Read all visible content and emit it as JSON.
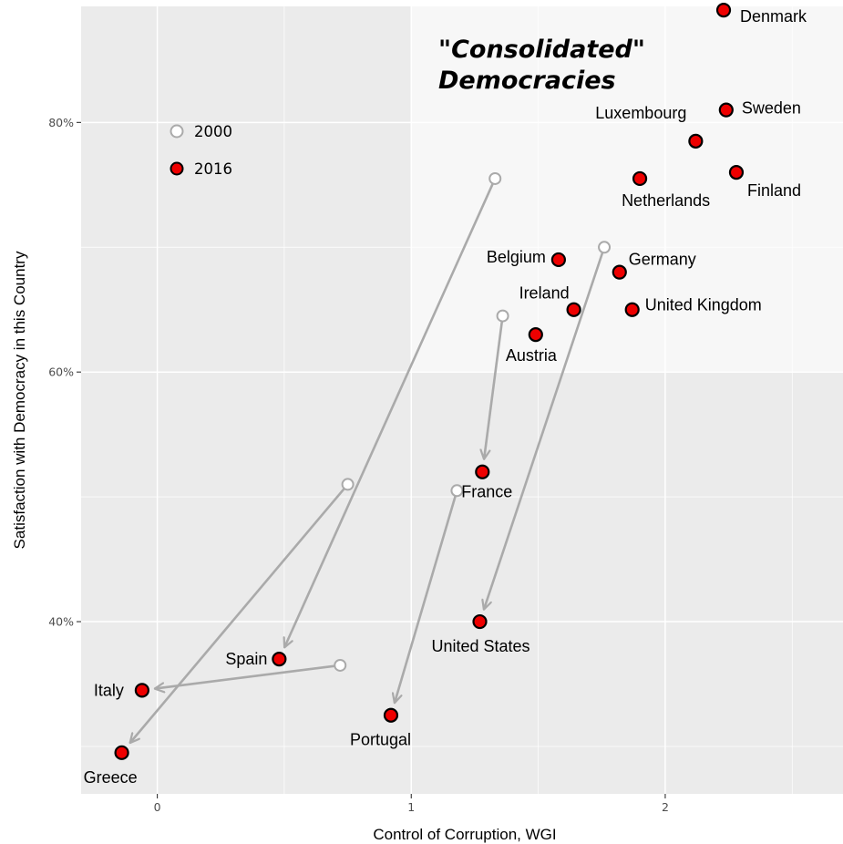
{
  "chart_data": {
    "type": "scatter",
    "xlabel": "Control of Corruption, WGI",
    "ylabel": "Satisfaction with Democracy in this Country",
    "xlim": [
      -0.3,
      2.7
    ],
    "ylim": [
      0.262,
      0.893
    ],
    "x_ticks": [
      {
        "value": 0,
        "label": "0"
      },
      {
        "value": 1,
        "label": "1"
      },
      {
        "value": 2,
        "label": "2"
      }
    ],
    "y_ticks": [
      {
        "value": 0.4,
        "label": "40%"
      },
      {
        "value": 0.6,
        "label": "60%"
      },
      {
        "value": 0.8,
        "label": "80%"
      }
    ],
    "grid": true,
    "highlight_region": {
      "x_min": 1.0,
      "y_min": 0.6,
      "color": "#f7f7f7"
    },
    "annotation": {
      "line1_quoted": "Consolidated",
      "line2": "Democracies"
    },
    "legend": {
      "position": "top-left",
      "entries": [
        {
          "label": "2000",
          "fill": "#ffffff",
          "stroke": "#aaaaaa"
        },
        {
          "label": "2016",
          "fill": "#ee0000",
          "stroke": "#000000"
        }
      ]
    },
    "colors": {
      "point_2016": "#ee0000",
      "point_2000": "#ffffff",
      "arrow": "#aaaaaa",
      "panel": "#ebebeb",
      "grid": "#ffffff"
    },
    "series": [
      {
        "name": "2016",
        "points": [
          {
            "label": "Denmark",
            "x": 2.23,
            "y": 0.89
          },
          {
            "label": "Sweden",
            "x": 2.24,
            "y": 0.81
          },
          {
            "label": "Luxembourg",
            "x": 2.12,
            "y": 0.785
          },
          {
            "label": "Finland",
            "x": 2.28,
            "y": 0.76
          },
          {
            "label": "Netherlands",
            "x": 1.9,
            "y": 0.755
          },
          {
            "label": "Belgium",
            "x": 1.58,
            "y": 0.69
          },
          {
            "label": "Germany",
            "x": 1.82,
            "y": 0.68
          },
          {
            "label": "Ireland",
            "x": 1.64,
            "y": 0.65
          },
          {
            "label": "United Kingdom",
            "x": 1.87,
            "y": 0.65
          },
          {
            "label": "Austria",
            "x": 1.49,
            "y": 0.63
          },
          {
            "label": "France",
            "x": 1.28,
            "y": 0.52
          },
          {
            "label": "United States",
            "x": 1.27,
            "y": 0.4
          },
          {
            "label": "Spain",
            "x": 0.48,
            "y": 0.37
          },
          {
            "label": "Portugal",
            "x": 0.92,
            "y": 0.325
          },
          {
            "label": "Italy",
            "x": -0.06,
            "y": 0.345
          },
          {
            "label": "Greece",
            "x": -0.14,
            "y": 0.295
          }
        ]
      },
      {
        "name": "2000",
        "points": [
          {
            "x": 1.33,
            "y": 0.755
          },
          {
            "x": 1.76,
            "y": 0.7
          },
          {
            "x": 1.36,
            "y": 0.645
          },
          {
            "x": 1.18,
            "y": 0.505
          },
          {
            "x": 0.75,
            "y": 0.51
          },
          {
            "x": 0.72,
            "y": 0.365
          }
        ]
      }
    ],
    "arrows": [
      {
        "from": [
          1.33,
          0.755
        ],
        "to": [
          0.48,
          0.37
        ]
      },
      {
        "from": [
          1.76,
          0.7
        ],
        "to": [
          1.27,
          0.4
        ]
      },
      {
        "from": [
          1.36,
          0.645
        ],
        "to": [
          1.28,
          0.52
        ]
      },
      {
        "from": [
          1.18,
          0.505
        ],
        "to": [
          0.92,
          0.325
        ]
      },
      {
        "from": [
          0.75,
          0.51
        ],
        "to": [
          -0.14,
          0.295
        ]
      },
      {
        "from": [
          0.72,
          0.365
        ],
        "to": [
          -0.06,
          0.345
        ]
      }
    ]
  }
}
